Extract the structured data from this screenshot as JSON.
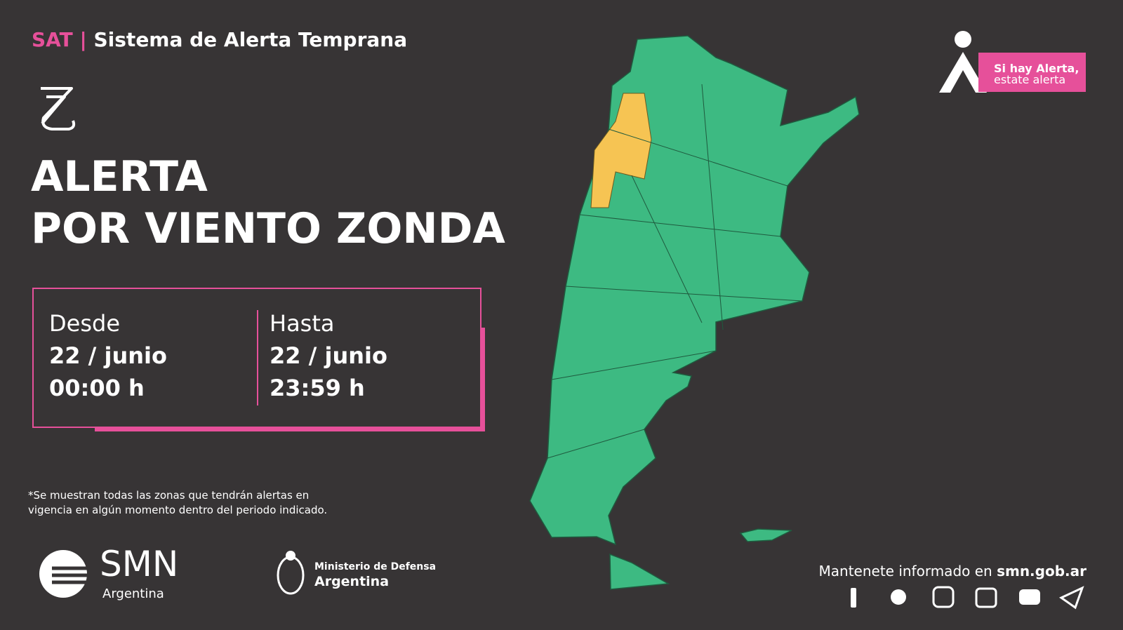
{
  "header": {
    "tag": "SAT",
    "separator": "|",
    "title": "Sistema de Alerta Temprana"
  },
  "alert": {
    "line1": "ALERTA",
    "line2": "POR VIENTO ZONDA"
  },
  "period": {
    "from": {
      "label": "Desde",
      "date": "22 / junio",
      "time": "00:00 h"
    },
    "to": {
      "label": "Hasta",
      "date": "22 / junio",
      "time": "23:59 h"
    }
  },
  "footnote": {
    "line1": "*Se muestran todas las zonas que tendrán alertas en",
    "line2": "vigencia en algún momento dentro del periodo indicado."
  },
  "badge": {
    "line1": "Si hay Alerta,",
    "line2": "estate alerta"
  },
  "logos": {
    "smn": "SMN",
    "smn_sub": "Argentina",
    "ministry": "Ministerio de Defensa",
    "ministry_sub": "Argentina"
  },
  "footer": {
    "text": "Mantenete informado en ",
    "site": "smn.gob.ar"
  }
}
